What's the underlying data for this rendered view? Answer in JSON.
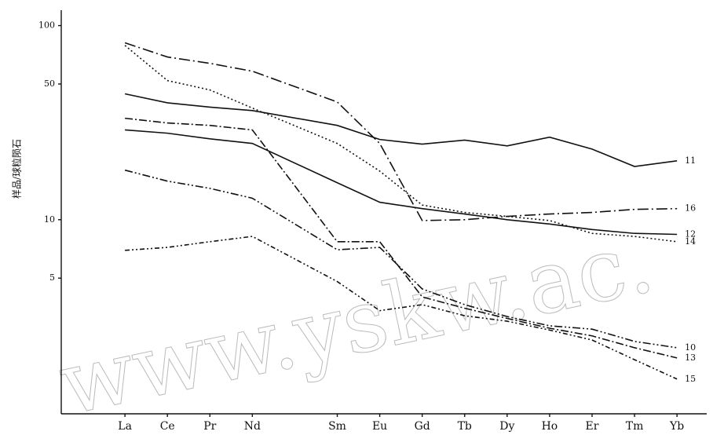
{
  "chart_data": {
    "type": "line",
    "y_label": "样品/球粒陨石",
    "watermark": "www.yskw.ac.",
    "x": [
      57,
      58,
      59,
      60,
      62,
      63,
      64,
      65,
      66,
      67,
      68,
      69,
      70
    ],
    "xlim": [
      55.5,
      70.7
    ],
    "xticks": [
      {
        "value": 57,
        "label": "La"
      },
      {
        "value": 58,
        "label": "Ce"
      },
      {
        "value": 59,
        "label": "Pr"
      },
      {
        "value": 60,
        "label": "Nd"
      },
      {
        "value": 62,
        "label": "Sm"
      },
      {
        "value": 63,
        "label": "Eu"
      },
      {
        "value": 64,
        "label": "Gd"
      },
      {
        "value": 65,
        "label": "Tb"
      },
      {
        "value": 66,
        "label": "Dy"
      },
      {
        "value": 67,
        "label": "Ho"
      },
      {
        "value": 68,
        "label": "Er"
      },
      {
        "value": 69,
        "label": "Tm"
      },
      {
        "value": 70,
        "label": "Yb"
      }
    ],
    "ylim": [
      1,
      120
    ],
    "yticks": [
      5,
      10,
      50,
      100
    ],
    "log_y": true,
    "series": [
      {
        "name": "11",
        "color": "#111",
        "dash": "none",
        "values": [
          44.5,
          40,
          38,
          36.5,
          30.6,
          25.9,
          24.5,
          25.7,
          24.0,
          26.6,
          23.1,
          18.8,
          20.1
        ]
      },
      {
        "name": "16",
        "color": "#111",
        "dash": "14,4,2,4",
        "values": [
          81.5,
          68.9,
          63.9,
          58.2,
          40.4,
          24.7,
          9.9,
          10,
          10.4,
          10.7,
          10.9,
          11.3,
          11.4
        ]
      },
      {
        "name": "12",
        "color": "#111",
        "dash": "none",
        "values": [
          29,
          27.9,
          26.1,
          24.7,
          15.5,
          12.3,
          11.4,
          10.7,
          10,
          9.5,
          8.9,
          8.5,
          8.4
        ]
      },
      {
        "name": "14",
        "color": "#111",
        "dash": "2,3",
        "values": [
          79,
          52.1,
          46.6,
          37.6,
          24.7,
          17.8,
          11.9,
          10.9,
          10.4,
          9.9,
          8.5,
          8.2,
          7.7
        ]
      },
      {
        "name": "10",
        "color": "#111",
        "dash": "10,3,2,3,2,3",
        "values": [
          18,
          15.8,
          14.5,
          12.9,
          7.0,
          7.2,
          4.4,
          3.65,
          3.17,
          2.84,
          2.73,
          2.36,
          2.19
        ]
      },
      {
        "name": "13",
        "color": "#111",
        "dash": "10,3,2,3",
        "values": [
          33.3,
          31.5,
          30.6,
          29,
          7.7,
          7.7,
          4.0,
          3.5,
          3.1,
          2.76,
          2.52,
          2.19,
          1.94
        ]
      },
      {
        "name": "15",
        "color": "#111",
        "dash": "6,3,2,3,2,3",
        "values": [
          6.95,
          7.2,
          7.7,
          8.2,
          4.8,
          3.4,
          3.65,
          3.2,
          3.0,
          2.7,
          2.4,
          1.9,
          1.51
        ]
      }
    ]
  }
}
